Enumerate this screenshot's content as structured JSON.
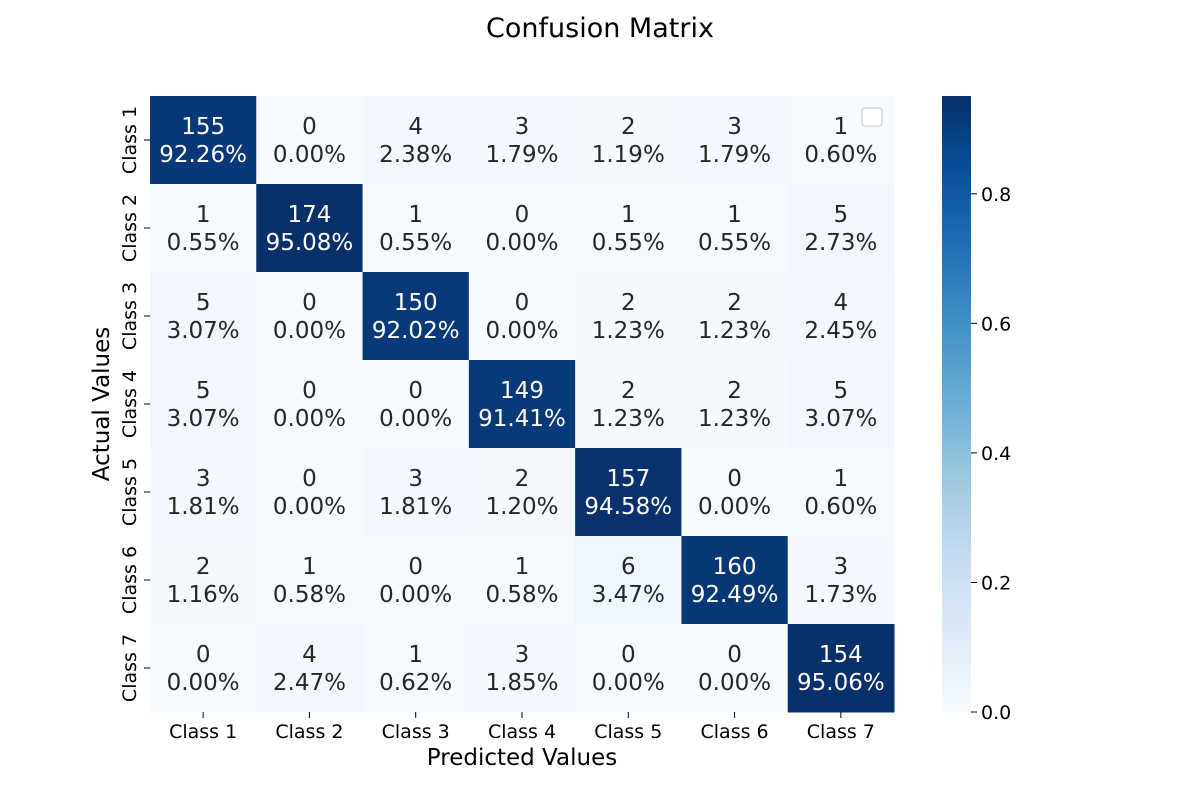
{
  "chart_data": {
    "type": "heatmap",
    "title": "Confusion Matrix",
    "xlabel": "Predicted Values",
    "ylabel": "Actual Values",
    "x_categories": [
      "Class 1",
      "Class 2",
      "Class 3",
      "Class 4",
      "Class 5",
      "Class 6",
      "Class 7"
    ],
    "y_categories": [
      "Class 1",
      "Class 2",
      "Class 3",
      "Class 4",
      "Class 5",
      "Class 6",
      "Class 7"
    ],
    "counts": [
      [
        155,
        0,
        4,
        3,
        2,
        3,
        1
      ],
      [
        1,
        174,
        1,
        0,
        1,
        1,
        5
      ],
      [
        5,
        0,
        150,
        0,
        2,
        2,
        4
      ],
      [
        5,
        0,
        0,
        149,
        2,
        2,
        5
      ],
      [
        3,
        0,
        3,
        2,
        157,
        0,
        1
      ],
      [
        2,
        1,
        0,
        1,
        6,
        160,
        3
      ],
      [
        0,
        4,
        1,
        3,
        0,
        0,
        154
      ]
    ],
    "percent_labels": [
      [
        "92.26%",
        "0.00%",
        "2.38%",
        "1.79%",
        "1.19%",
        "1.79%",
        "0.60%"
      ],
      [
        "0.55%",
        "95.08%",
        "0.55%",
        "0.00%",
        "0.55%",
        "0.55%",
        "2.73%"
      ],
      [
        "3.07%",
        "0.00%",
        "92.02%",
        "0.00%",
        "1.23%",
        "1.23%",
        "2.45%"
      ],
      [
        "3.07%",
        "0.00%",
        "0.00%",
        "91.41%",
        "1.23%",
        "1.23%",
        "3.07%"
      ],
      [
        "1.81%",
        "0.00%",
        "1.81%",
        "1.20%",
        "94.58%",
        "0.00%",
        "0.60%"
      ],
      [
        "1.16%",
        "0.58%",
        "0.00%",
        "0.58%",
        "3.47%",
        "92.49%",
        "1.73%"
      ],
      [
        "0.00%",
        "2.47%",
        "0.62%",
        "1.85%",
        "0.00%",
        "0.00%",
        "95.06%"
      ]
    ],
    "colorbar": {
      "range": [
        0,
        0.951
      ],
      "ticks": [
        "0.0",
        "0.2",
        "0.4",
        "0.6",
        "0.8"
      ],
      "tick_values": [
        0,
        0.2,
        0.4,
        0.6,
        0.8
      ],
      "colormap": "Blues"
    },
    "legend": "empty legend box at top-right",
    "grid": false
  }
}
